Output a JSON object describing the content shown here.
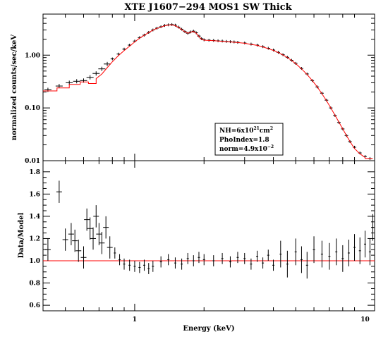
{
  "chart_data": {
    "type": "scatter",
    "title": "XTE J1607−294 MOS1 SW Thick",
    "xlabel": "Energy (keV)",
    "x_scale": "log",
    "xlim": [
      0.4,
      11
    ],
    "x_ticks": [
      "1",
      "10"
    ],
    "annotation": {
      "line1_text": "NH=6x10",
      "line1_sup": "21",
      "line1_unit": "cm",
      "line1_unit_sup": "2",
      "line2": "PhoIndex=1.8",
      "line3_text": "norm=4.9x10",
      "line3_sup": "−2"
    },
    "top_panel": {
      "ylabel": "normalized counts/sec/keV",
      "y_scale": "log",
      "ylim": [
        0.01,
        6
      ],
      "y_ticks": [
        "0.01",
        "0.10",
        "1.00"
      ],
      "data_color": "#000000",
      "model_color": "#ff0000",
      "data": [
        [
          0.42,
          0.22
        ],
        [
          0.47,
          0.26
        ],
        [
          0.52,
          0.3
        ],
        [
          0.56,
          0.32
        ],
        [
          0.6,
          0.33
        ],
        [
          0.64,
          0.38
        ],
        [
          0.68,
          0.45
        ],
        [
          0.72,
          0.55
        ],
        [
          0.76,
          0.68
        ],
        [
          0.8,
          0.85
        ],
        [
          0.85,
          1.05
        ],
        [
          0.9,
          1.3
        ],
        [
          0.95,
          1.55
        ],
        [
          1.0,
          1.85
        ],
        [
          1.05,
          2.15
        ],
        [
          1.1,
          2.4
        ],
        [
          1.15,
          2.7
        ],
        [
          1.2,
          3.0
        ],
        [
          1.25,
          3.25
        ],
        [
          1.3,
          3.45
        ],
        [
          1.35,
          3.65
        ],
        [
          1.4,
          3.75
        ],
        [
          1.45,
          3.8
        ],
        [
          1.5,
          3.7
        ],
        [
          1.55,
          3.4
        ],
        [
          1.6,
          3.1
        ],
        [
          1.65,
          2.8
        ],
        [
          1.7,
          2.6
        ],
        [
          1.75,
          2.75
        ],
        [
          1.8,
          2.85
        ],
        [
          1.85,
          2.65
        ],
        [
          1.9,
          2.3
        ],
        [
          1.95,
          2.05
        ],
        [
          2.0,
          1.95
        ],
        [
          2.1,
          1.92
        ],
        [
          2.2,
          1.9
        ],
        [
          2.3,
          1.87
        ],
        [
          2.4,
          1.85
        ],
        [
          2.5,
          1.82
        ],
        [
          2.6,
          1.8
        ],
        [
          2.7,
          1.78
        ],
        [
          2.8,
          1.75
        ],
        [
          3.0,
          1.7
        ],
        [
          3.2,
          1.62
        ],
        [
          3.4,
          1.55
        ],
        [
          3.6,
          1.45
        ],
        [
          3.8,
          1.35
        ],
        [
          4.0,
          1.25
        ],
        [
          4.2,
          1.13
        ],
        [
          4.4,
          1.02
        ],
        [
          4.6,
          0.91
        ],
        [
          4.8,
          0.8
        ],
        [
          5.0,
          0.7
        ],
        [
          5.3,
          0.56
        ],
        [
          5.6,
          0.44
        ],
        [
          5.9,
          0.33
        ],
        [
          6.2,
          0.25
        ],
        [
          6.5,
          0.19
        ],
        [
          6.8,
          0.14
        ],
        [
          7.1,
          0.1
        ],
        [
          7.4,
          0.072
        ],
        [
          7.7,
          0.053
        ],
        [
          8.0,
          0.04
        ],
        [
          8.3,
          0.03
        ],
        [
          8.6,
          0.023
        ],
        [
          9.0,
          0.018
        ],
        [
          9.5,
          0.014
        ],
        [
          10.0,
          0.012
        ],
        [
          10.5,
          0.011
        ]
      ],
      "model": [
        [
          0.4,
          0.21
        ],
        [
          0.46,
          0.21
        ],
        [
          0.46,
          0.24
        ],
        [
          0.52,
          0.24
        ],
        [
          0.52,
          0.28
        ],
        [
          0.58,
          0.28
        ],
        [
          0.58,
          0.31
        ],
        [
          0.63,
          0.31
        ],
        [
          0.63,
          0.29
        ],
        [
          0.68,
          0.29
        ],
        [
          0.68,
          0.36
        ],
        [
          0.72,
          0.44
        ],
        [
          0.76,
          0.58
        ],
        [
          0.8,
          0.75
        ],
        [
          0.85,
          0.98
        ],
        [
          0.9,
          1.22
        ],
        [
          0.95,
          1.48
        ],
        [
          1.0,
          1.78
        ],
        [
          1.05,
          2.1
        ],
        [
          1.1,
          2.38
        ],
        [
          1.15,
          2.68
        ],
        [
          1.2,
          2.98
        ],
        [
          1.25,
          3.22
        ],
        [
          1.3,
          3.42
        ],
        [
          1.35,
          3.6
        ],
        [
          1.4,
          3.72
        ],
        [
          1.45,
          3.75
        ],
        [
          1.5,
          3.62
        ],
        [
          1.55,
          3.35
        ],
        [
          1.6,
          3.05
        ],
        [
          1.65,
          2.78
        ],
        [
          1.7,
          2.6
        ],
        [
          1.75,
          2.72
        ],
        [
          1.8,
          2.82
        ],
        [
          1.85,
          2.6
        ],
        [
          1.9,
          2.25
        ],
        [
          1.95,
          2.0
        ],
        [
          2.0,
          1.92
        ],
        [
          2.2,
          1.88
        ],
        [
          2.4,
          1.83
        ],
        [
          2.6,
          1.78
        ],
        [
          2.8,
          1.73
        ],
        [
          3.0,
          1.68
        ],
        [
          3.2,
          1.6
        ],
        [
          3.4,
          1.53
        ],
        [
          3.6,
          1.43
        ],
        [
          3.8,
          1.33
        ],
        [
          4.0,
          1.23
        ],
        [
          4.2,
          1.12
        ],
        [
          4.4,
          1.01
        ],
        [
          4.6,
          0.9
        ],
        [
          4.8,
          0.79
        ],
        [
          5.0,
          0.69
        ],
        [
          5.3,
          0.55
        ],
        [
          5.6,
          0.43
        ],
        [
          5.9,
          0.33
        ],
        [
          6.2,
          0.25
        ],
        [
          6.5,
          0.185
        ],
        [
          6.8,
          0.137
        ],
        [
          7.1,
          0.1
        ],
        [
          7.4,
          0.073
        ],
        [
          7.7,
          0.054
        ],
        [
          8.0,
          0.04
        ],
        [
          8.3,
          0.03
        ],
        [
          8.6,
          0.023
        ],
        [
          9.0,
          0.017
        ],
        [
          9.5,
          0.0135
        ],
        [
          10.0,
          0.0115
        ],
        [
          10.0,
          0.011
        ],
        [
          10.8,
          0.011
        ]
      ]
    },
    "bottom_panel": {
      "ylabel": "Data/Model",
      "ylim": [
        0.55,
        1.9
      ],
      "y_ticks": [
        "0.6",
        "0.8",
        "1.0",
        "1.2",
        "1.4",
        "1.6",
        "1.8"
      ],
      "reference_line": 1.0,
      "data_color": "#000000",
      "line_color": "#ff0000",
      "data": [
        [
          0.42,
          1.1
        ],
        [
          0.47,
          1.62
        ],
        [
          0.5,
          1.19
        ],
        [
          0.53,
          1.24
        ],
        [
          0.55,
          1.18
        ],
        [
          0.57,
          1.09
        ],
        [
          0.6,
          1.03
        ],
        [
          0.62,
          1.37
        ],
        [
          0.64,
          1.29
        ],
        [
          0.66,
          1.2
        ],
        [
          0.68,
          1.4
        ],
        [
          0.7,
          1.24
        ],
        [
          0.72,
          1.16
        ],
        [
          0.75,
          1.3
        ],
        [
          0.78,
          1.12
        ],
        [
          0.82,
          1.07
        ],
        [
          0.86,
          1.01
        ],
        [
          0.9,
          0.97
        ],
        [
          0.95,
          0.96
        ],
        [
          1.0,
          0.95
        ],
        [
          1.05,
          0.94
        ],
        [
          1.1,
          0.96
        ],
        [
          1.15,
          0.93
        ],
        [
          1.2,
          0.95
        ],
        [
          1.3,
          0.99
        ],
        [
          1.4,
          1.01
        ],
        [
          1.5,
          0.98
        ],
        [
          1.6,
          0.97
        ],
        [
          1.7,
          1.02
        ],
        [
          1.8,
          1.0
        ],
        [
          1.9,
          1.03
        ],
        [
          2.0,
          1.01
        ],
        [
          2.2,
          1.0
        ],
        [
          2.4,
          1.02
        ],
        [
          2.6,
          0.99
        ],
        [
          2.8,
          1.03
        ],
        [
          3.0,
          1.02
        ],
        [
          3.2,
          0.97
        ],
        [
          3.4,
          1.04
        ],
        [
          3.6,
          0.98
        ],
        [
          3.8,
          1.05
        ],
        [
          4.0,
          0.96
        ],
        [
          4.3,
          1.06
        ],
        [
          4.6,
          0.97
        ],
        [
          5.0,
          1.08
        ],
        [
          5.3,
          1.01
        ],
        [
          5.6,
          0.96
        ],
        [
          6.0,
          1.1
        ],
        [
          6.5,
          1.06
        ],
        [
          7.0,
          1.04
        ],
        [
          7.5,
          1.08
        ],
        [
          8.0,
          1.02
        ],
        [
          8.5,
          1.07
        ],
        [
          9.0,
          1.12
        ],
        [
          9.5,
          1.09
        ],
        [
          10.0,
          1.15
        ],
        [
          10.5,
          1.08
        ],
        [
          10.8,
          1.3
        ]
      ]
    }
  }
}
